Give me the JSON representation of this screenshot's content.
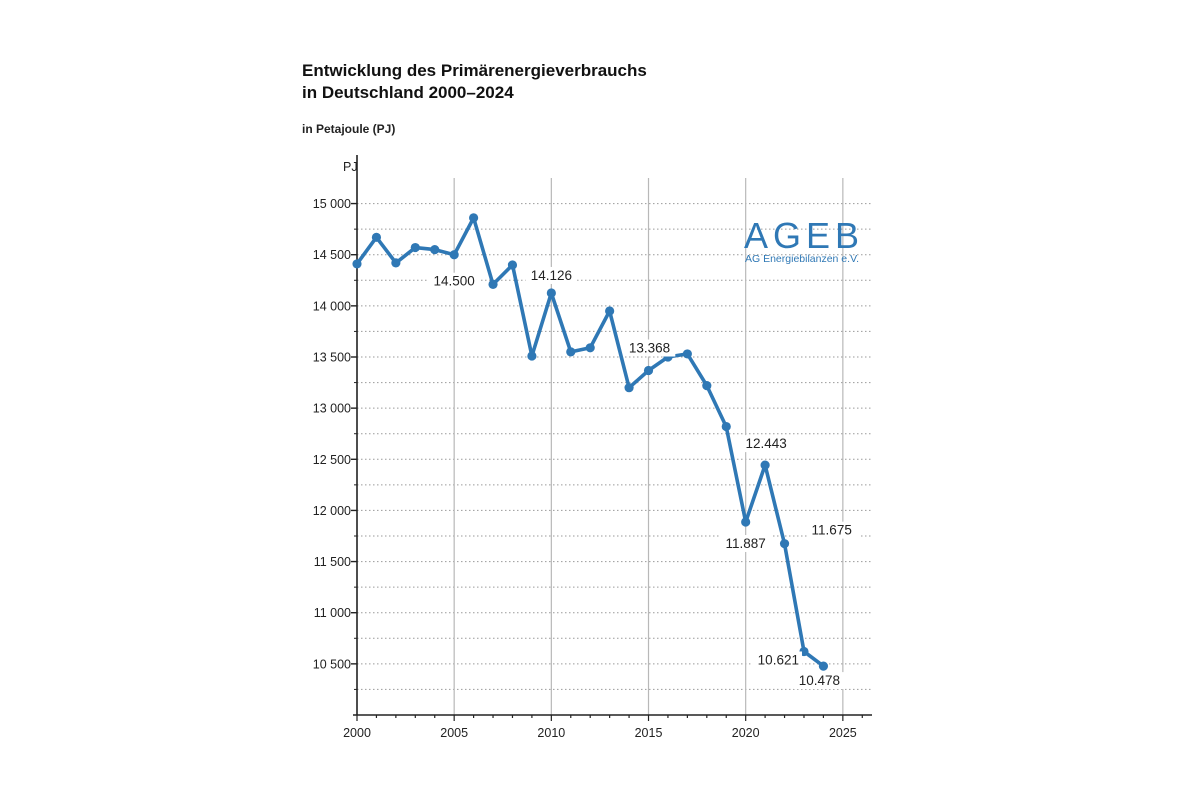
{
  "title_line1": "Entwicklung des Primärenergieverbrauchs",
  "title_line2": "in Deutschland 2000–2024",
  "subtitle": "in Petajoule (PJ)",
  "logo": {
    "text": "AGEB",
    "subtext": "AG Energiebilanzen e.V."
  },
  "colors": {
    "line": "#2f78b5",
    "axis": "#222222",
    "grid": "#9a9a9a",
    "logo": "#2f78b5"
  },
  "chart_data": {
    "type": "line",
    "ylabel": "PJ",
    "xlim": [
      2000,
      2026.5
    ],
    "ylim": [
      10000,
      15250
    ],
    "xticks": [
      2000,
      2005,
      2010,
      2015,
      2020,
      2025
    ],
    "yticks": [
      10500,
      11000,
      11500,
      12000,
      12500,
      13000,
      13500,
      14000,
      14500,
      15000
    ],
    "ytick_labels": [
      "10 500",
      "11 000",
      "11 500",
      "12 000",
      "12 500",
      "13 000",
      "13 500",
      "14 000",
      "14 500",
      "15 000"
    ],
    "grid": true,
    "series": [
      {
        "points": [
          [
            2000,
            14410
          ],
          [
            2001,
            14670
          ],
          [
            2002,
            14420
          ],
          [
            2003,
            14570
          ],
          [
            2004,
            14550
          ],
          [
            2005,
            14500
          ],
          [
            2006,
            14860
          ],
          [
            2007,
            14210
          ],
          [
            2008,
            14400
          ],
          [
            2009,
            13510
          ],
          [
            2010,
            14126
          ],
          [
            2011,
            13550
          ],
          [
            2012,
            13590
          ],
          [
            2013,
            13950
          ],
          [
            2014,
            13200
          ],
          [
            2015,
            13368
          ],
          [
            2016,
            13500
          ],
          [
            2017,
            13530
          ],
          [
            2018,
            13220
          ],
          [
            2019,
            12820
          ],
          [
            2020,
            11887
          ],
          [
            2021,
            12443
          ],
          [
            2022,
            11675
          ],
          [
            2023,
            10621
          ],
          [
            2024,
            10478
          ]
        ]
      }
    ],
    "annotations": [
      {
        "x": 2005,
        "y": 14500,
        "label": "14.500"
      },
      {
        "x": 2010,
        "y": 14126,
        "label": "14.126"
      },
      {
        "x": 2015,
        "y": 13368,
        "label": "13.368"
      },
      {
        "x": 2020,
        "y": 11887,
        "label": "11.887"
      },
      {
        "x": 2021,
        "y": 12443,
        "label": "12.443"
      },
      {
        "x": 2022,
        "y": 11675,
        "label": "11.675"
      },
      {
        "x": 2023,
        "y": 10621,
        "label": "10.621"
      },
      {
        "x": 2024,
        "y": 10478,
        "label": "10.478"
      }
    ]
  }
}
